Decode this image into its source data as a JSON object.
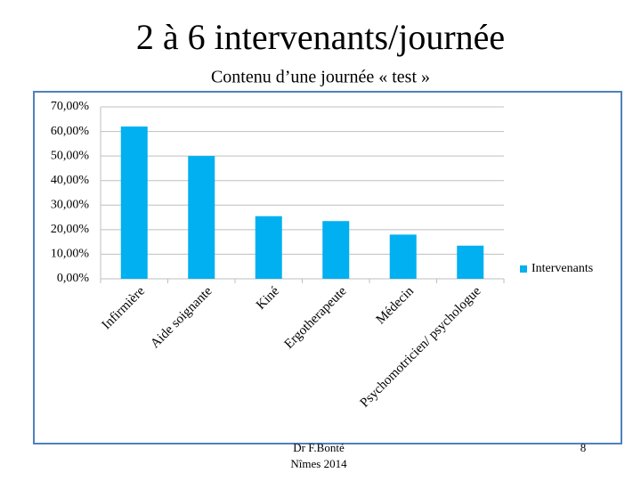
{
  "chart_data": {
    "type": "bar",
    "title": "2 à 6 intervenants/journée",
    "subtitle": "Contenu d’une journée « test »",
    "categories": [
      "Infirmière",
      "Aide soignante",
      "Kiné",
      "Ergotherapeute",
      "Médecin",
      "Psychomotricien/ psychologue"
    ],
    "series": [
      {
        "name": "Intervenants",
        "color": "#00b0f0",
        "values": [
          62,
          50,
          25.5,
          23.5,
          18,
          13.5
        ]
      }
    ],
    "ylim": [
      0,
      70
    ],
    "yticks": [
      {
        "value": 0,
        "label": "0,00%"
      },
      {
        "value": 10,
        "label": "10,00%"
      },
      {
        "value": 20,
        "label": "20,00%"
      },
      {
        "value": 30,
        "label": "30,00%"
      },
      {
        "value": 40,
        "label": "40,00%"
      },
      {
        "value": 50,
        "label": "50,00%"
      },
      {
        "value": 60,
        "label": "60,00%"
      },
      {
        "value": 70,
        "label": "70,00%"
      }
    ],
    "grid": true,
    "legend": "right"
  },
  "footer": {
    "author": "Dr F.Bonté",
    "place": "Nîmes 2014",
    "page": "8"
  }
}
